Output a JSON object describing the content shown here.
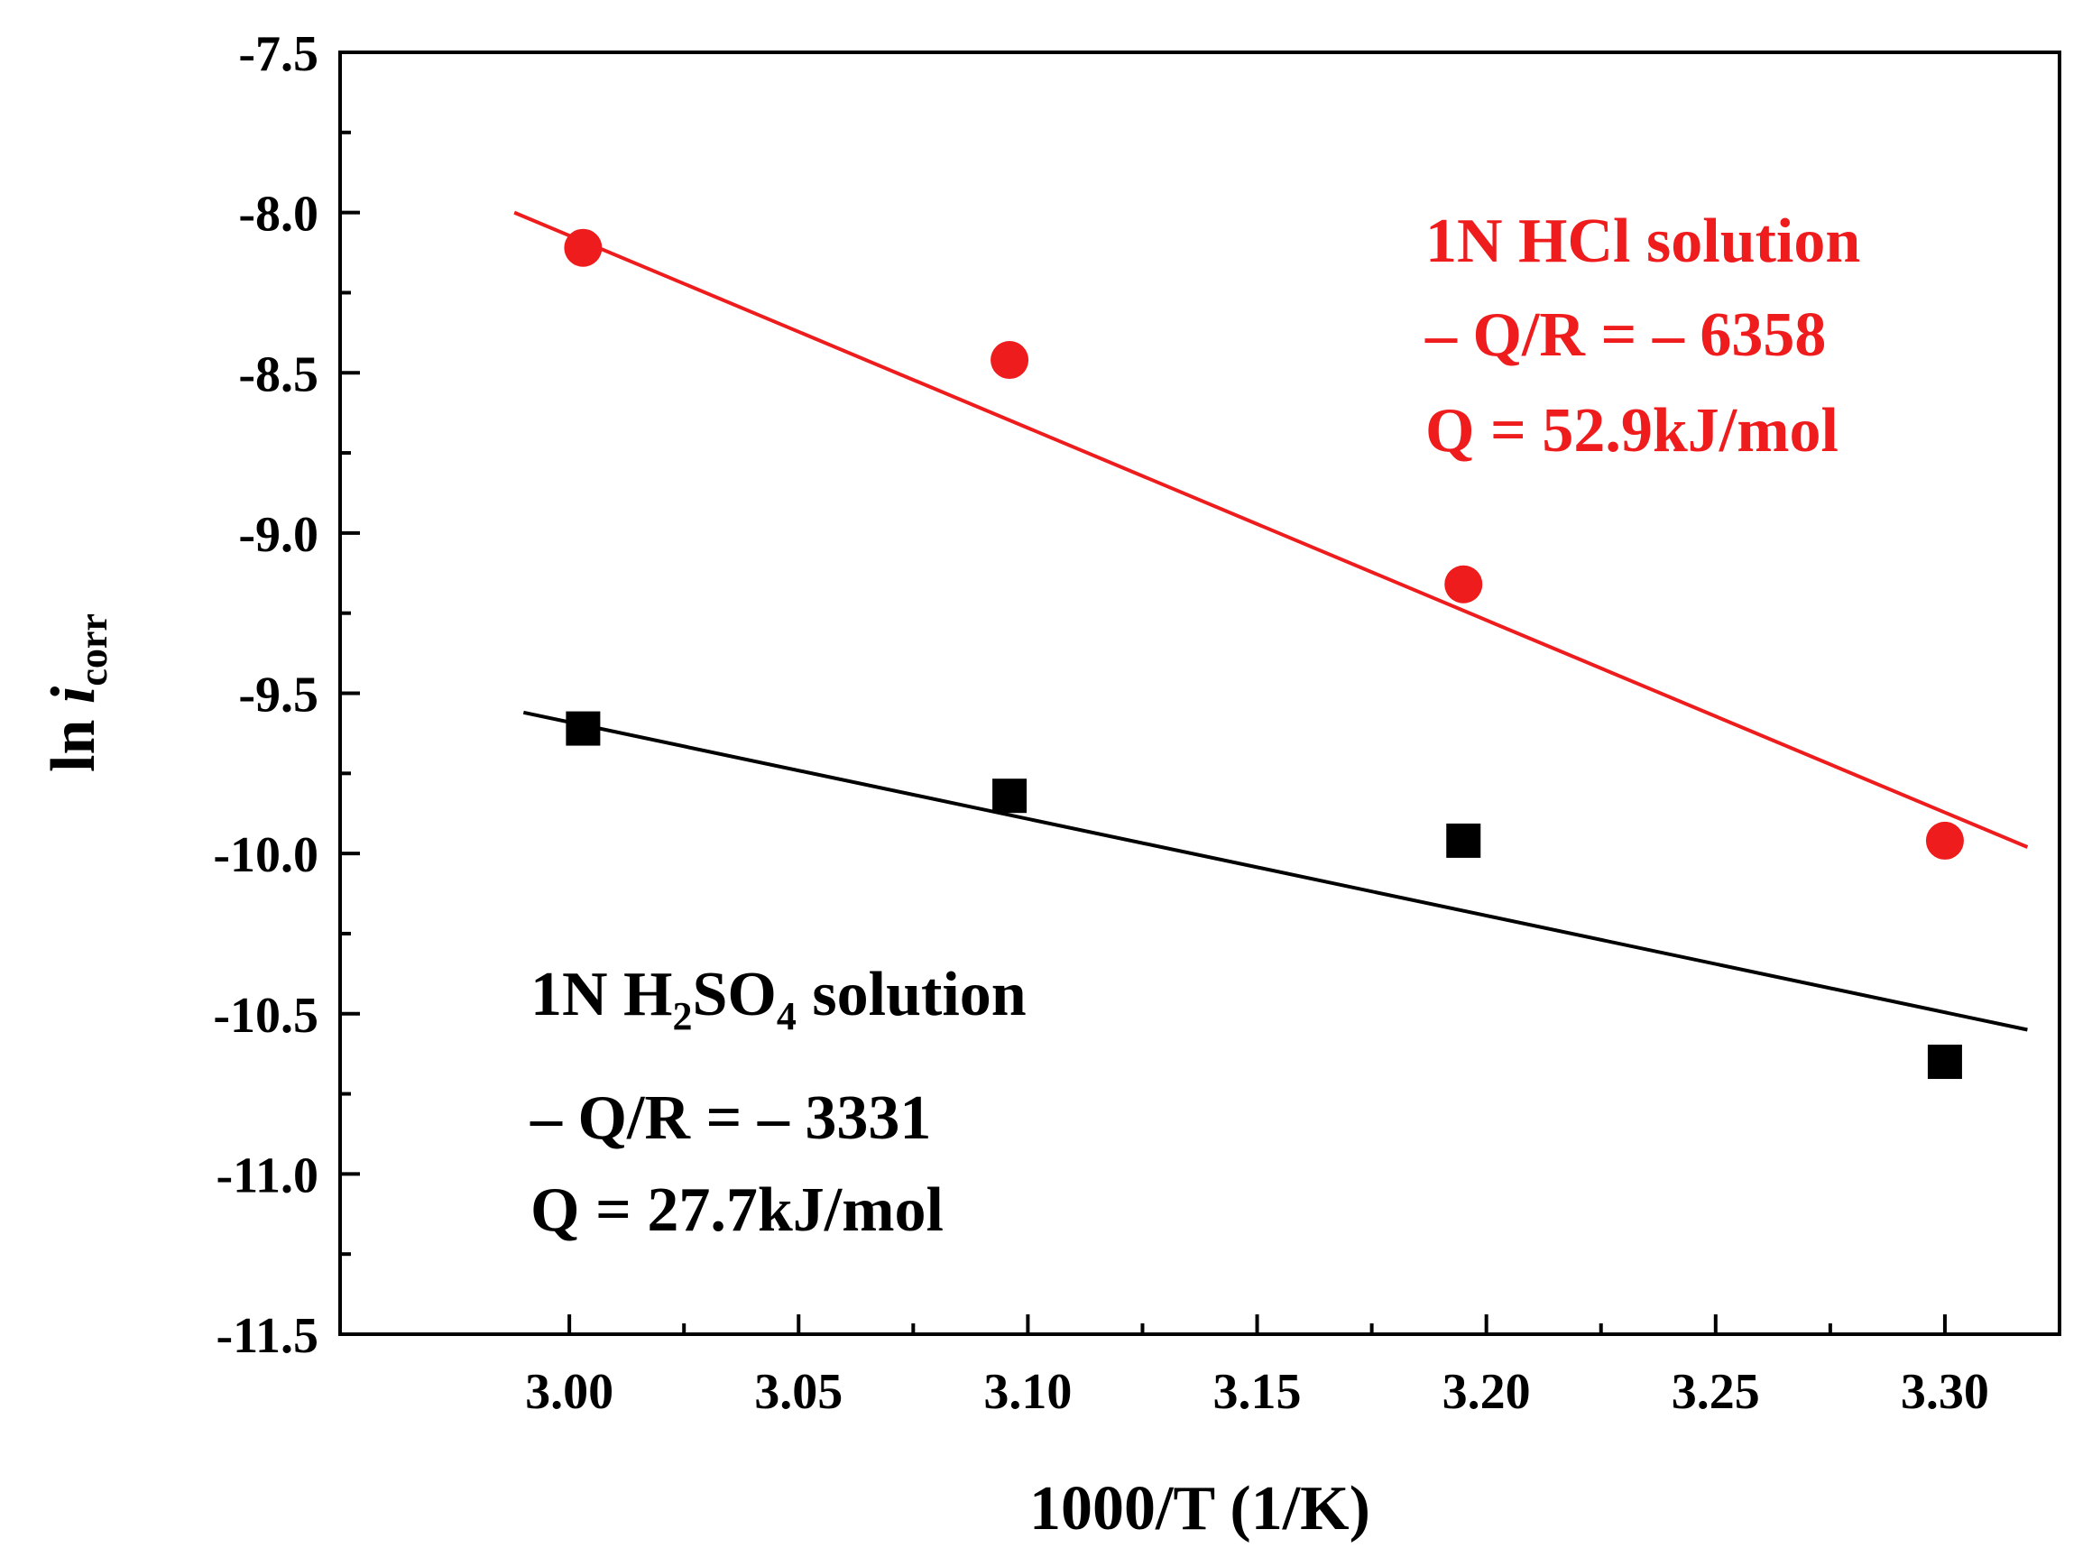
{
  "chart_data": {
    "type": "scatter",
    "xlabel": "1000/T (1/K)",
    "ylabel_main": "ln ",
    "ylabel_italic": "i",
    "ylabel_sub": "corr",
    "xlim": [
      2.95,
      3.325
    ],
    "ylim": [
      -11.5,
      -7.5
    ],
    "xticks": [
      3.0,
      3.05,
      3.1,
      3.15,
      3.2,
      3.25,
      3.3
    ],
    "xtick_labels": [
      "3.00",
      "3.05",
      "3.10",
      "3.15",
      "3.20",
      "3.25",
      "3.30"
    ],
    "yticks": [
      -7.5,
      -8.0,
      -8.5,
      -9.0,
      -9.5,
      -10.0,
      -10.5,
      -11.0,
      -11.5
    ],
    "ytick_labels": [
      "-7.5",
      "-8.0",
      "-8.5",
      "-9.0",
      "-9.5",
      "-10.0",
      "-10.5",
      "-11.0",
      "-11.5"
    ],
    "series": [
      {
        "name": "1N HCl solution",
        "marker": "circle",
        "color": "#ee1c1c",
        "x": [
          3.003,
          3.096,
          3.195,
          3.3
        ],
        "y": [
          -8.11,
          -8.46,
          -9.16,
          -9.96
        ],
        "fit": {
          "x": [
            2.988,
            3.318
          ],
          "y": [
            -8.0,
            -9.98
          ]
        }
      },
      {
        "name": "1N H2SO4 solution",
        "marker": "square",
        "color": "#000000",
        "x": [
          3.003,
          3.096,
          3.195,
          3.3
        ],
        "y": [
          -9.61,
          -9.82,
          -9.96,
          -10.65
        ],
        "fit": {
          "x": [
            2.99,
            3.318
          ],
          "y": [
            -9.56,
            -10.55
          ]
        }
      }
    ],
    "annotations": {
      "hcl": {
        "line1": "1N HCl solution",
        "line2": "– Q/R = – 6358",
        "line3": "Q = 52.9kJ/mol"
      },
      "h2so4": {
        "line1_a": "1N H",
        "line1_sub1": "2",
        "line1_b": "SO",
        "line1_sub2": "4",
        "line1_c": " solution",
        "line2": "– Q/R = – 3331",
        "line3": "Q = 27.7kJ/mol"
      }
    }
  }
}
